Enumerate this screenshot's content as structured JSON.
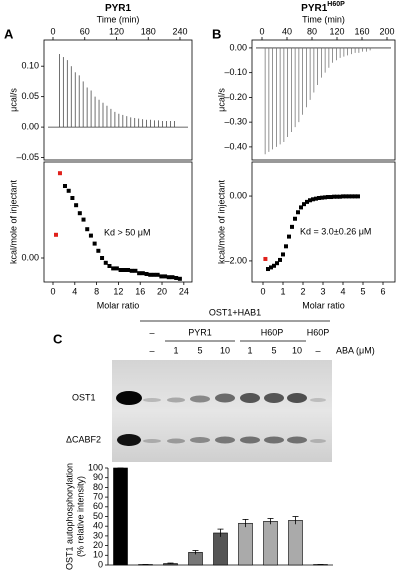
{
  "figure": {
    "panels": [
      "A",
      "B",
      "C"
    ],
    "gel": {
      "header": "OST1+HAB1",
      "groups": [
        "–",
        "PYR1",
        "H60P",
        "H60P"
      ],
      "aba": [
        "–",
        "1",
        "5",
        "10",
        "1",
        "5",
        "10",
        "–"
      ],
      "aba_label": "ABA (μM)",
      "bands": [
        "OST1",
        "ΔCABF2"
      ]
    }
  },
  "chart_data": [
    {
      "type": "line",
      "title": "PYR1",
      "x_label": "Time (min)",
      "y_label": "μcal/s",
      "x_axis_position": "top",
      "xlim": [
        -17,
        262.7
      ],
      "xticks": [
        0,
        60,
        120,
        180,
        240
      ],
      "ylim": [
        -0.054,
        0.143
      ],
      "yticks": [
        {
          "value": 0.1,
          "label": "0.10"
        },
        {
          "value": 0.05,
          "label": "0.05"
        },
        {
          "value": 0,
          "label": "0.00"
        },
        {
          "value": -0.05,
          "label": "–0.05"
        }
      ],
      "series": [
        {
          "name": null,
          "color": "#333333",
          "x": [
            12,
            19.5,
            27,
            34.5,
            42,
            49.5,
            57,
            64.5,
            72,
            79.5,
            87,
            94.5,
            102,
            109.5,
            117,
            124.5,
            132,
            139.5,
            147,
            154.5,
            162,
            169.5,
            177,
            184.5,
            192,
            199.5,
            207,
            214.5,
            222,
            229.5
          ],
          "values": [
            0.12,
            0.115,
            0.11,
            0.1,
            0.09,
            0.085,
            0.075,
            0.065,
            0.06,
            0.05,
            0.045,
            0.04,
            0.035,
            0.03,
            0.025,
            0.022,
            0.02,
            0.018,
            0.016,
            0.015,
            0.014,
            0.013,
            0.012,
            0.012,
            0.011,
            0.011,
            0.01,
            0.01,
            0.01,
            0.01
          ]
        }
      ]
    },
    {
      "type": "scatter",
      "x_label": "Molar ratio",
      "y_label": "kcal/mole of injectant",
      "annotation": "Kd > 50 μM",
      "xlim": [
        -1.65,
        25.5
      ],
      "xticks": [
        0,
        4,
        8,
        12,
        16,
        20,
        24
      ],
      "ylim": [
        -0.03,
        0.12
      ],
      "yticks": [
        {
          "value": 0,
          "label": "0.00"
        }
      ],
      "series": [
        {
          "name": null,
          "color": "#e0201b",
          "x": [
            0.55,
            1.28
          ],
          "values": [
            0.029,
            0.106
          ]
        },
        {
          "name": null,
          "color": "#000000",
          "x": [
            2.2,
            2.88,
            3.56,
            4.24,
            4.92,
            5.6,
            6.28,
            6.96,
            7.64,
            8.32,
            9.0,
            9.68,
            10.36,
            11.04,
            11.72,
            12.4,
            13.08,
            13.76,
            14.44,
            15.12,
            15.8,
            16.48,
            17.16,
            17.84,
            18.52,
            19.2,
            19.88,
            20.56,
            21.24,
            21.92,
            22.6,
            23.28
          ],
          "values": [
            0.09,
            0.084,
            0.075,
            0.066,
            0.056,
            0.048,
            0.036,
            0.028,
            0.018,
            0.009,
            0,
            -0.006,
            -0.01,
            -0.013,
            -0.013,
            -0.015,
            -0.015,
            -0.015,
            -0.016,
            -0.016,
            -0.019,
            -0.019,
            -0.02,
            -0.021,
            -0.021,
            -0.021,
            -0.023,
            -0.023,
            -0.024,
            -0.024,
            -0.025,
            -0.026
          ]
        }
      ]
    },
    {
      "type": "line",
      "title": "PYR1",
      "title_superscript": "H60P",
      "x_label": "Time (min)",
      "y_label": "μcal/s",
      "x_axis_position": "top",
      "xlim": [
        -16,
        212.8
      ],
      "xticks": [
        0,
        40,
        80,
        120,
        160,
        200
      ],
      "ylim": [
        -0.453,
        0.032
      ],
      "yticks": [
        {
          "value": 0,
          "label": "0.00"
        },
        {
          "value": -0.1,
          "label": "–0.10"
        },
        {
          "value": -0.2,
          "label": "–0.20"
        },
        {
          "value": -0.3,
          "label": "–0.30"
        },
        {
          "value": -0.4,
          "label": "–0.40"
        }
      ],
      "series": [
        {
          "name": null,
          "color": "#666666",
          "x": [
            5,
            11,
            17,
            23,
            29,
            35,
            41,
            47,
            53,
            59,
            65,
            71,
            77,
            83,
            89,
            95,
            101,
            107,
            113,
            119,
            125,
            131,
            137,
            143,
            149,
            155,
            161,
            167,
            173
          ],
          "values": [
            -0.43,
            -0.42,
            -0.41,
            -0.4,
            -0.39,
            -0.38,
            -0.36,
            -0.34,
            -0.32,
            -0.3,
            -0.27,
            -0.24,
            -0.21,
            -0.18,
            -0.15,
            -0.12,
            -0.1,
            -0.08,
            -0.06,
            -0.05,
            -0.04,
            -0.035,
            -0.03,
            -0.025,
            -0.02,
            -0.02,
            -0.015,
            -0.015,
            -0.01
          ]
        }
      ]
    },
    {
      "type": "scatter",
      "x_label": "Molar ratio",
      "y_label": "kcal/mole of injectant",
      "annotation": "Kd = 3.0±0.26 μM",
      "xlim": [
        -0.55,
        6.6
      ],
      "xticks": [
        0,
        1,
        2,
        3,
        4,
        5,
        6
      ],
      "ylim": [
        -2.65,
        1.05
      ],
      "yticks": [
        {
          "value": 0,
          "label": "0.00"
        },
        {
          "value": -2,
          "label": "–2.00"
        }
      ],
      "series": [
        {
          "name": null,
          "color": "#e0201b",
          "x": [
            0.12
          ],
          "values": [
            -1.94
          ]
        },
        {
          "name": null,
          "color": "#000000",
          "x": [
            0.25,
            0.4,
            0.55,
            0.7,
            0.85,
            1.0,
            1.15,
            1.3,
            1.45,
            1.6,
            1.75,
            1.9,
            2.05,
            2.2,
            2.35,
            2.5,
            2.65,
            2.8,
            2.95,
            3.1,
            3.25,
            3.4,
            3.55,
            3.7,
            3.85,
            4.0,
            4.15,
            4.3,
            4.45,
            4.6,
            4.75
          ],
          "values": [
            -2.25,
            -2.2,
            -2.15,
            -2.07,
            -1.97,
            -1.8,
            -1.55,
            -1.25,
            -0.95,
            -0.7,
            -0.5,
            -0.35,
            -0.25,
            -0.18,
            -0.13,
            -0.1,
            -0.08,
            -0.06,
            -0.05,
            -0.04,
            -0.03,
            -0.03,
            -0.02,
            -0.02,
            -0.02,
            -0.01,
            -0.01,
            -0.01,
            -0.01,
            -0.01,
            -0.01
          ]
        }
      ]
    },
    {
      "type": "bar",
      "y_label": [
        "OST1 autophosphorylation",
        "(% relative intensity)"
      ],
      "categories": [
        null,
        null,
        null,
        null,
        null,
        null,
        null,
        null,
        null
      ],
      "values": [
        100,
        0.5,
        1.5,
        13,
        33,
        43,
        45,
        46,
        0.5
      ],
      "errors": [
        0,
        0,
        0.5,
        2,
        4,
        4,
        3,
        4,
        0
      ],
      "colors": [
        "#000000",
        "#ffffff",
        "#555555",
        "#777777",
        "#555555",
        "#aaaaaa",
        "#aaaaaa",
        "#aaaaaa",
        "#ffffff"
      ],
      "ylim": [
        0,
        100
      ],
      "yticks": [
        0,
        10,
        20,
        30,
        40,
        50,
        60,
        70,
        80,
        90,
        100
      ]
    }
  ]
}
